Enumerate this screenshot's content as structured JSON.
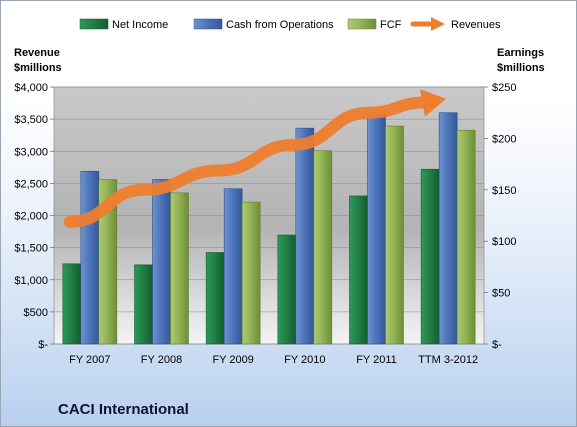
{
  "chart_data": {
    "type": "bar",
    "title": "CACI International",
    "categories": [
      "FY 2007",
      "FY 2008",
      "FY 2009",
      "FY 2010",
      "FY 2011",
      "TTM 3-2012"
    ],
    "y_left": {
      "label_line1": "Revenue",
      "label_line2": "$millions",
      "range": [
        0,
        4000
      ],
      "ticks": [
        "$-",
        "$500",
        "$1,000",
        "$1,500",
        "$2,000",
        "$2,500",
        "$3,000",
        "$3,500",
        "$4,000"
      ]
    },
    "y_right": {
      "label_line1": "Earnings",
      "label_line2": "$millions",
      "range": [
        0,
        250
      ],
      "ticks": [
        "$-",
        "$50",
        "$100",
        "$150",
        "$200",
        "$250"
      ]
    },
    "series": [
      {
        "name": "Net Income",
        "axis": "right",
        "color": "#21894a",
        "values": [
          78,
          77,
          89,
          106,
          144,
          170
        ]
      },
      {
        "name": "Cash from Operations",
        "axis": "right",
        "color": "#4a73b8",
        "values": [
          168,
          160,
          151,
          210,
          224,
          225
        ]
      },
      {
        "name": "FCF",
        "axis": "right",
        "color": "#93b457",
        "values": [
          160,
          147,
          138,
          188,
          212,
          208
        ]
      },
      {
        "name": "Revenues",
        "axis": "left",
        "type": "arrow",
        "color": "#ee7d2e",
        "values": [
          1900,
          2400,
          2700,
          3100,
          3600,
          3800
        ]
      }
    ],
    "legend_position": "top",
    "grid": true
  }
}
